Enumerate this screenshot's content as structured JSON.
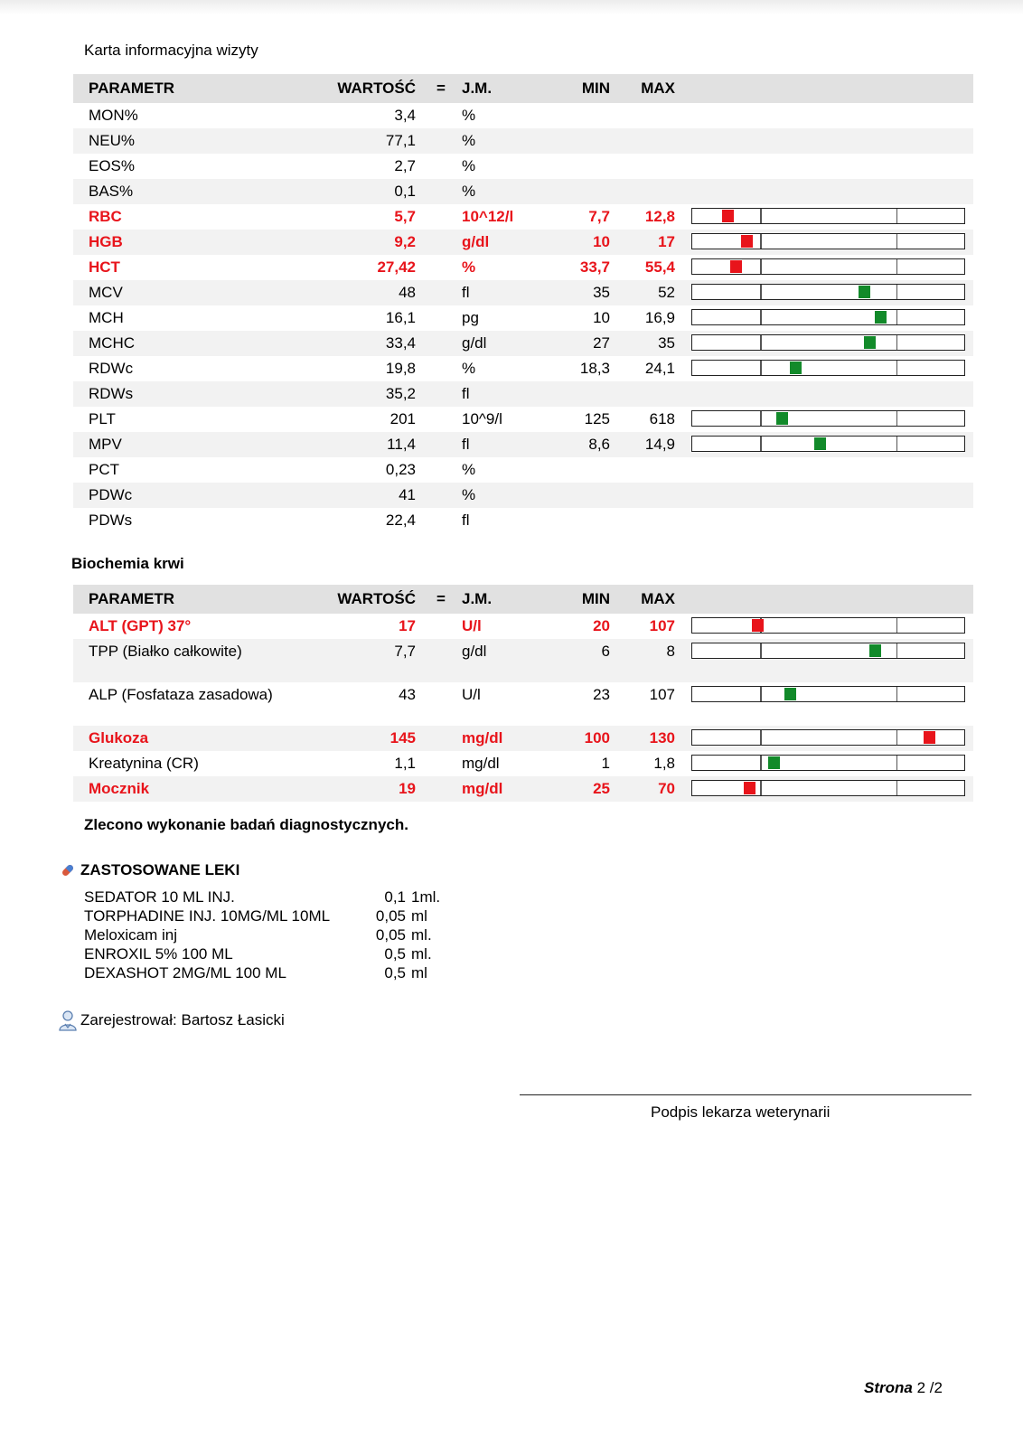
{
  "header": {
    "title": "Karta informacyjna wizyty"
  },
  "columns": {
    "param": "PARAMETR",
    "value": "WARTOŚĆ",
    "eq": "=",
    "unit": "J.M.",
    "min": "MIN",
    "max": "MAX"
  },
  "morphology": {
    "rows": [
      {
        "param": "MON%",
        "value": "3,4",
        "unit": "%",
        "min": "",
        "max": "",
        "flag": false,
        "bar": null
      },
      {
        "param": "NEU%",
        "value": "77,1",
        "unit": "%",
        "min": "",
        "max": "",
        "flag": false,
        "bar": null
      },
      {
        "param": "EOS%",
        "value": "2,7",
        "unit": "%",
        "min": "",
        "max": "",
        "flag": false,
        "bar": null
      },
      {
        "param": "BAS%",
        "value": "0,1",
        "unit": "%",
        "min": "",
        "max": "",
        "flag": false,
        "bar": null
      },
      {
        "param": "RBC",
        "value": "5,7",
        "unit": "10^12/l",
        "min": "7,7",
        "max": "12,8",
        "flag": true,
        "bar": 0.13
      },
      {
        "param": "HGB",
        "value": "9,2",
        "unit": "g/dl",
        "min": "10",
        "max": "17",
        "flag": true,
        "bar": 0.2
      },
      {
        "param": "HCT",
        "value": "27,42",
        "unit": "%",
        "min": "33,7",
        "max": "55,4",
        "flag": true,
        "bar": 0.16
      },
      {
        "param": "MCV",
        "value": "48",
        "unit": "fl",
        "min": "35",
        "max": "52",
        "flag": false,
        "bar": 0.63
      },
      {
        "param": "MCH",
        "value": "16,1",
        "unit": "pg",
        "min": "10",
        "max": "16,9",
        "flag": false,
        "bar": 0.69
      },
      {
        "param": "MCHC",
        "value": "33,4",
        "unit": "g/dl",
        "min": "27",
        "max": "35",
        "flag": false,
        "bar": 0.65
      },
      {
        "param": "RDWc",
        "value": "19,8",
        "unit": "%",
        "min": "18,3",
        "max": "24,1",
        "flag": false,
        "bar": 0.38
      },
      {
        "param": "RDWs",
        "value": "35,2",
        "unit": "fl",
        "min": "",
        "max": "",
        "flag": false,
        "bar": null
      },
      {
        "param": "PLT",
        "value": "201",
        "unit": "10^9/l",
        "min": "125",
        "max": "618",
        "flag": false,
        "bar": 0.33
      },
      {
        "param": "MPV",
        "value": "11,4",
        "unit": "fl",
        "min": "8,6",
        "max": "14,9",
        "flag": false,
        "bar": 0.47
      },
      {
        "param": "PCT",
        "value": "0,23",
        "unit": "%",
        "min": "",
        "max": "",
        "flag": false,
        "bar": null
      },
      {
        "param": "PDWc",
        "value": "41",
        "unit": "%",
        "min": "",
        "max": "",
        "flag": false,
        "bar": null
      },
      {
        "param": "PDWs",
        "value": "22,4",
        "unit": "fl",
        "min": "",
        "max": "",
        "flag": false,
        "bar": null
      }
    ]
  },
  "biochem": {
    "title": "Biochemia krwi",
    "rows": [
      {
        "param": "ALT (GPT) 37°",
        "value": "17",
        "unit": "U/l",
        "min": "20",
        "max": "107",
        "flag": true,
        "bar": 0.24,
        "tall": false
      },
      {
        "param": "TPP (Białko całkowite)",
        "value": "7,7",
        "unit": "g/dl",
        "min": "6",
        "max": "8",
        "flag": false,
        "bar": 0.67,
        "tall": true
      },
      {
        "param": "ALP (Fosfataza zasadowa)",
        "value": "43",
        "unit": "U/l",
        "min": "23",
        "max": "107",
        "flag": false,
        "bar": 0.36,
        "tall": true
      },
      {
        "param": "Glukoza",
        "value": "145",
        "unit": "mg/dl",
        "min": "100",
        "max": "130",
        "flag": true,
        "bar": 0.87,
        "tall": false
      },
      {
        "param": "Kreatynina (CR)",
        "value": "1,1",
        "unit": "mg/dl",
        "min": "1",
        "max": "1,8",
        "flag": false,
        "bar": 0.3,
        "tall": false
      },
      {
        "param": "Mocznik",
        "value": "19",
        "unit": "mg/dl",
        "min": "25",
        "max": "70",
        "flag": true,
        "bar": 0.21,
        "tall": false
      }
    ]
  },
  "note": "Zlecono wykonanie badań diagnostycznych.",
  "medications": {
    "title": "ZASTOSOWANE LEKI",
    "items": [
      {
        "name": "SEDATOR 10 ML INJ.",
        "qty": "0,1",
        "unit": "1ml."
      },
      {
        "name": "TORPHADINE INJ. 10MG/ML 10ML",
        "qty": "0,05",
        "unit": "ml"
      },
      {
        "name": "Meloxicam inj",
        "qty": "0,05",
        "unit": "ml."
      },
      {
        "name": "ENROXIL 5% 100 ML",
        "qty": "0,5",
        "unit": "ml."
      },
      {
        "name": "DEXASHOT 2MG/ML 100 ML",
        "qty": "0,5",
        "unit": "ml"
      }
    ]
  },
  "registrar": "Zarejestrował: Bartosz Łasicki",
  "signature_label": "Podpis lekarza weterynarii",
  "page": {
    "label": "Strona",
    "number": "2",
    "sep": "/",
    "total": "2"
  },
  "colors": {
    "out_of_range": "#e8141b",
    "in_range": "#128a2a"
  }
}
